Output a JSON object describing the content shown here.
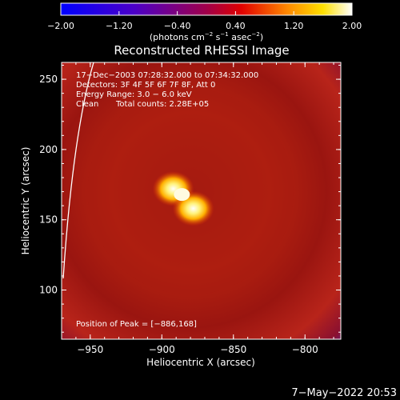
{
  "chart_data": {
    "type": "heatmap",
    "title": "Reconstructed RHESSI Image",
    "xlabel": "Heliocentric X (arcsec)",
    "ylabel": "Heliocentric Y (arcsec)",
    "xlim": [
      -970,
      -775
    ],
    "ylim": [
      65,
      262
    ],
    "x_ticks": [
      -950,
      -900,
      -850,
      -800
    ],
    "y_ticks": [
      100,
      150,
      200,
      250
    ],
    "x_tick_labels": [
      "−950",
      "−900",
      "−850",
      "−800"
    ],
    "y_tick_labels": [
      "100",
      "150",
      "200",
      "250"
    ],
    "colorbar": {
      "range": [
        -2.0,
        2.0
      ],
      "tick_values": [
        -2.0,
        -1.2,
        -0.4,
        0.4,
        1.2,
        2.0
      ],
      "tick_labels": [
        "−2.00",
        "−1.20",
        "−0.40",
        "0.40",
        "1.20",
        "2.00"
      ],
      "label_main": "(photons cm",
      "label_exp1": "−2",
      "label_mid": " s",
      "label_exp2": "−1",
      "label_end": " asec",
      "label_exp3": "−2",
      "label_close": ")"
    },
    "annotations": [
      "17−Dec−2003 07:28:32.000 to 07:34:32.000",
      "Detectors: 3F 4F 5F 6F 7F 8F, Att 0",
      "Energy Range: 3.0 − 6.0 keV",
      "Clean",
      "Total counts: 2.28E+05"
    ],
    "peak_label": "Position of Peak = [−886,168]",
    "peak": [
      -886,
      168
    ],
    "ring": {
      "center": [
        -880,
        170
      ],
      "radius_arcsec": 72
    },
    "source_blobs": [
      [
        -892,
        172
      ],
      [
        -878,
        158
      ]
    ]
  },
  "footer": {
    "timestamp": "7−May−2022 20:53"
  }
}
